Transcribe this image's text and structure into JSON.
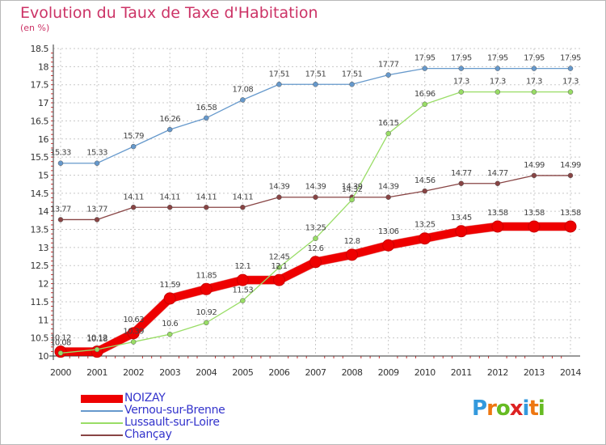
{
  "title": "Evolution du Taux de Taxe d'Habitation",
  "unit": "(en %)",
  "logo": {
    "letters": [
      "P",
      "r",
      "o",
      "x",
      "i",
      "t",
      "i"
    ],
    "colors": [
      "#3399dd",
      "#ee7711",
      "#66bb22",
      "#dd2222",
      "#3399dd",
      "#ee7711",
      "#66bb22"
    ]
  },
  "chart_data": {
    "type": "line",
    "x": [
      2000,
      2001,
      2002,
      2003,
      2004,
      2005,
      2006,
      2007,
      2008,
      2009,
      2010,
      2011,
      2012,
      2013,
      2014
    ],
    "ylim": [
      10,
      18.5
    ],
    "yticks": [
      "10",
      "10.5",
      "11",
      "11.5",
      "12",
      "12.5",
      "13",
      "13.5",
      "14",
      "14.5",
      "15",
      "15.5",
      "16",
      "16.5",
      "17",
      "17.5",
      "18",
      "18.5"
    ],
    "legend_position": "bottom",
    "series": [
      {
        "name": "NOIZAY",
        "color": "#ee0000",
        "values": [
          10.12,
          10.12,
          10.63,
          11.59,
          11.85,
          12.1,
          12.1,
          12.6,
          12.8,
          13.06,
          13.25,
          13.45,
          13.58,
          13.58,
          13.58
        ],
        "labels": [
          "10.12",
          "10.12",
          "10.63",
          "11.59",
          "11.85",
          "12.1",
          "12.1",
          "12.6",
          "12.8",
          "13.06",
          "13.25",
          "13.45",
          "13.58",
          "13.58",
          "13.58"
        ]
      },
      {
        "name": "Vernou-sur-Brenne",
        "color": "#6699cc",
        "values": [
          15.33,
          15.33,
          15.79,
          16.26,
          16.58,
          17.08,
          17.51,
          17.51,
          17.51,
          17.77,
          17.95,
          17.95,
          17.95,
          17.95,
          17.95
        ],
        "labels": [
          "15.33",
          "15.33",
          "15.79",
          "16.26",
          "16.58",
          "17.08",
          "17.51",
          "17.51",
          "17.51",
          "17.77",
          "17.95",
          "17.95",
          "17.95",
          "17.95",
          "17.95"
        ]
      },
      {
        "name": "Lussault-sur-Loire",
        "color": "#99dd66",
        "values": [
          10.08,
          10.18,
          10.39,
          10.6,
          10.92,
          11.53,
          12.45,
          13.25,
          14.32,
          16.15,
          16.96,
          17.3,
          17.3,
          17.3,
          17.3
        ],
        "labels": [
          "10.08",
          "10.18",
          "10.39",
          "10.6",
          "10.92",
          "11.53",
          "12.45",
          "13.25",
          "14.32",
          "16.15",
          "16.96",
          "17.3",
          "17.3",
          "17.3",
          "17.3"
        ]
      },
      {
        "name": "Chançay",
        "color": "#884444",
        "values": [
          13.77,
          13.77,
          14.11,
          14.11,
          14.11,
          14.11,
          14.39,
          14.39,
          14.39,
          14.39,
          14.56,
          14.77,
          14.77,
          14.99,
          14.99
        ],
        "labels": [
          "13.77",
          "13.77",
          "14.11",
          "14.11",
          "14.11",
          "14.11",
          "14.39",
          "14.39",
          "14.39",
          "14.39",
          "14.56",
          "14.77",
          "14.77",
          "14.99",
          "14.99"
        ]
      }
    ]
  }
}
